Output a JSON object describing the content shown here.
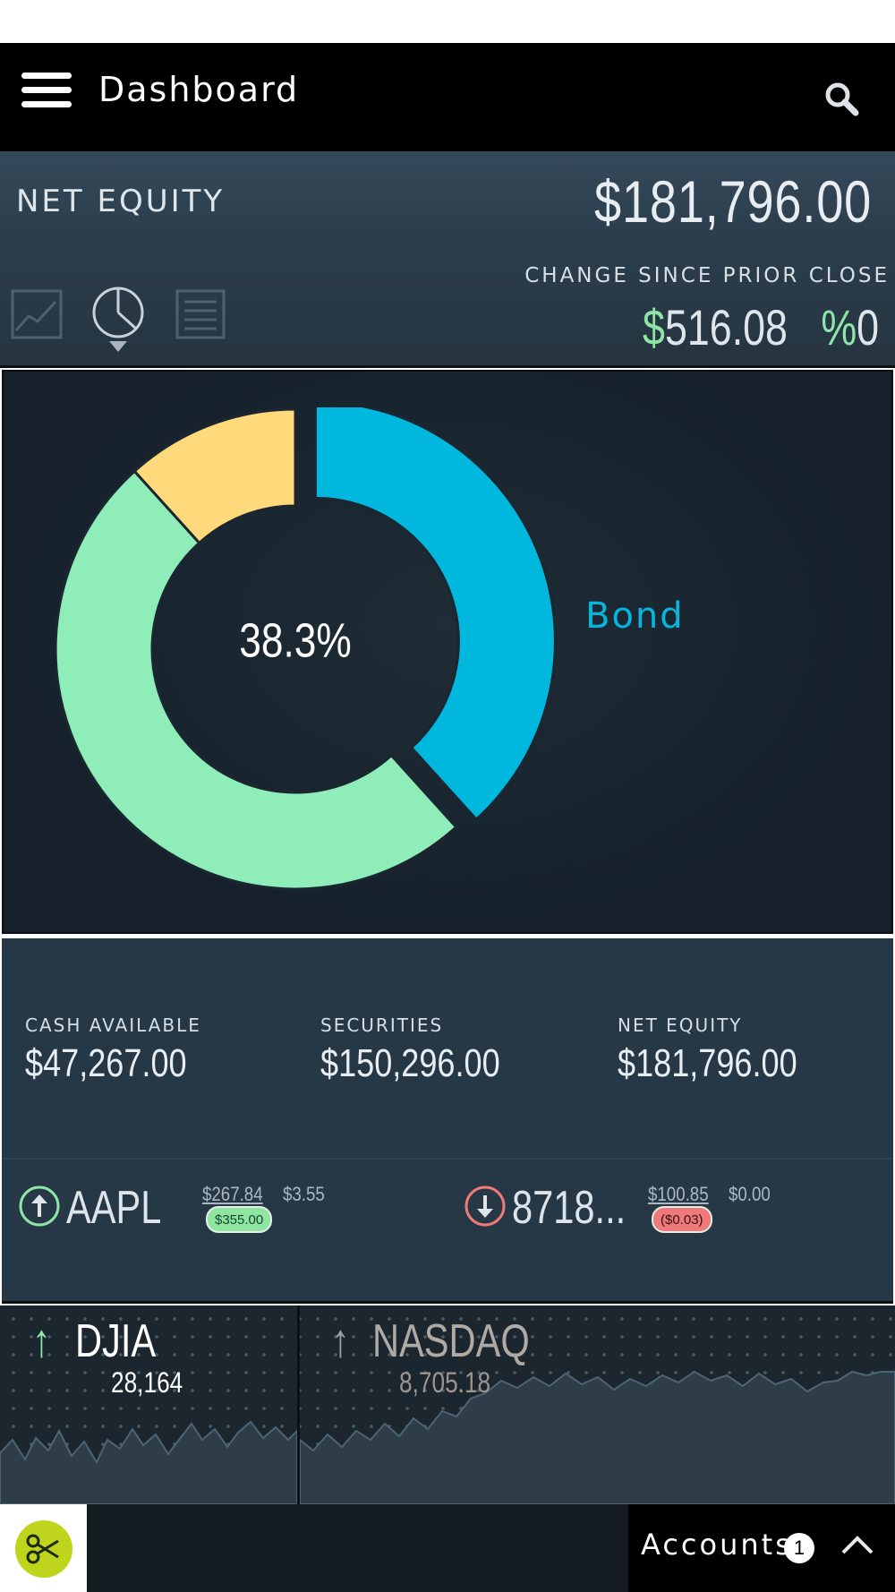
{
  "header": {
    "title": "Dashboard"
  },
  "net_equity": {
    "label": "NET EQUITY",
    "value": "$181,796.00"
  },
  "change": {
    "label": "CHANGE SINCE PRIOR CLOSE",
    "dollar_sign": "$",
    "dollar_value": "516.08",
    "percent_sign": "%",
    "percent_value": "0"
  },
  "allocation": {
    "center_label": "38.3%",
    "selected_label": "Bond",
    "slices": [
      {
        "value": 38.3,
        "color": "#00b8de"
      },
      {
        "value": 50.0,
        "color": "#8eedb8"
      },
      {
        "value": 11.7,
        "color": "#ffd97a"
      }
    ]
  },
  "summary": {
    "cash": {
      "label": "CASH AVAILABLE",
      "value": "$47,267.00"
    },
    "securities": {
      "label": "SECURITIES",
      "value": "$150,296.00"
    },
    "equity": {
      "label": "NET EQUITY",
      "value": "$181,796.00"
    }
  },
  "movers": [
    {
      "ticker": "AAPL",
      "price": "$267.84",
      "change": "$3.55",
      "badge": "$355.00",
      "direction": "up"
    },
    {
      "ticker": "8718...",
      "price": "$100.85",
      "change": "$0.00",
      "badge": "($0.03)",
      "direction": "down"
    }
  ],
  "indices": [
    {
      "name": "DJIA",
      "value": "28,164",
      "arrow": "↑"
    },
    {
      "name": "NASDAQ",
      "value": "8,705.18",
      "arrow": "↑"
    }
  ],
  "bottom": {
    "accounts_label": "Accounts",
    "accounts_count": "1"
  },
  "colors": {
    "accent_green": "#8de6a6",
    "bond_blue": "#06b6de",
    "loss_red": "#f07a7a",
    "fab_lime": "#bfd51b"
  },
  "icons": [
    "menu-icon",
    "search-icon",
    "line-chart-icon",
    "pie-chart-icon",
    "list-icon",
    "arrow-up-circle-icon",
    "arrow-down-circle-icon",
    "key-icon",
    "chevron-up-icon"
  ]
}
